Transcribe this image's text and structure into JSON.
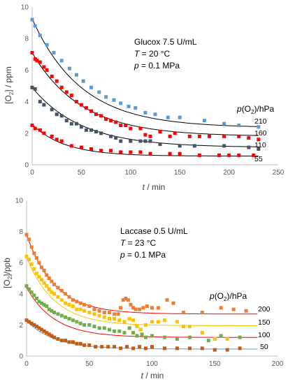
{
  "chart_data": [
    {
      "type": "scatter",
      "xlabel_var": "t",
      "xlabel_unit": " / min",
      "ylabel": "[O2] / ppm",
      "ylabel_pre": "[O",
      "ylabel_sub": "2",
      "ylabel_post": "] / ppm",
      "xlim": [
        0,
        250
      ],
      "ylim": [
        0,
        10
      ],
      "xticks": [
        0,
        50,
        100,
        150,
        200,
        250
      ],
      "yticks": [
        0,
        2,
        4,
        6,
        8,
        10
      ],
      "annotations": {
        "line1": "Glucox 7.5 U/mL",
        "line2_var": "T",
        "line2_rest": " = 20 °C",
        "line3_var": "p",
        "line3_rest": " = 0.1 MPa"
      },
      "legend_title_var": "p",
      "legend_title_pre": "(O",
      "legend_title_sub": "2",
      "legend_title_post": ")/hPa",
      "series": [
        {
          "name": "210",
          "color": "#5b9bd5",
          "fit_color": "#000000",
          "fit": {
            "a": 6.9,
            "k": 0.02,
            "c": 2.35
          },
          "x": [
            0,
            3,
            8,
            15,
            22,
            30,
            38,
            45,
            52,
            60,
            68,
            75,
            83,
            90,
            98,
            105,
            115,
            125,
            138,
            150,
            175,
            195,
            210,
            230
          ],
          "y": [
            9.2,
            8.8,
            8.2,
            7.6,
            7.1,
            6.6,
            6.1,
            5.7,
            5.3,
            4.9,
            4.6,
            4.3,
            4.1,
            3.9,
            3.7,
            3.6,
            3.3,
            3.2,
            3.0,
            3.0,
            2.8,
            2.6,
            2.5,
            2.4
          ]
        },
        {
          "name": "160",
          "color": "#ff0000",
          "fit_color": "#000000",
          "fit": {
            "a": 5.3,
            "k": 0.02,
            "c": 1.8
          },
          "x": [
            0,
            3,
            5,
            8,
            12,
            15,
            20,
            25,
            30,
            35,
            40,
            45,
            50,
            55,
            60,
            65,
            70,
            75,
            80,
            85,
            90,
            95,
            100,
            110,
            115,
            120,
            130,
            140,
            145,
            160,
            170,
            180,
            195,
            210,
            220,
            230
          ],
          "y": [
            7.1,
            6.7,
            6.6,
            6.5,
            6.2,
            6.0,
            5.6,
            5.3,
            4.9,
            4.6,
            4.4,
            4.0,
            3.8,
            3.6,
            3.4,
            3.2,
            3.1,
            2.9,
            2.8,
            2.7,
            2.5,
            2.5,
            2.3,
            2.3,
            1.9,
            1.8,
            2.1,
            1.8,
            2.0,
            1.8,
            1.8,
            1.8,
            1.8,
            1.8,
            1.7,
            1.6
          ]
        },
        {
          "name": "110",
          "color": "#44546a",
          "fit_color": "#000000",
          "fit": {
            "a": 3.8,
            "k": 0.02,
            "c": 1.1
          },
          "x": [
            0,
            3,
            8,
            12,
            20,
            25,
            30,
            35,
            40,
            45,
            50,
            55,
            60,
            65,
            70,
            80,
            85,
            90,
            100,
            110,
            115,
            120,
            130,
            150,
            165,
            195,
            220,
            230
          ],
          "y": [
            4.9,
            4.8,
            4.0,
            3.8,
            3.5,
            3.2,
            3.1,
            2.8,
            2.6,
            2.6,
            2.4,
            2.2,
            2.2,
            2.1,
            2.0,
            1.8,
            1.7,
            1.5,
            1.5,
            1.5,
            1.5,
            1.5,
            1.3,
            1.2,
            1.2,
            1.2,
            1.1,
            1.0
          ]
        },
        {
          "name": "55",
          "color": "#ff0000",
          "fit_color": "#000000",
          "fit": {
            "a": 2.0,
            "k": 0.03,
            "c": 0.55
          },
          "x": [
            0,
            3,
            8,
            12,
            20,
            25,
            30,
            40,
            50,
            60,
            70,
            80,
            90,
            100,
            110,
            120,
            140,
            150,
            170,
            190,
            200,
            210,
            225
          ],
          "y": [
            2.5,
            2.3,
            2.2,
            2.0,
            1.8,
            1.6,
            1.5,
            1.2,
            1.1,
            1.0,
            0.9,
            0.9,
            0.8,
            0.8,
            0.8,
            0.7,
            0.7,
            0.7,
            0.6,
            0.6,
            0.6,
            0.6,
            0.6
          ]
        }
      ]
    },
    {
      "type": "scatter",
      "xlabel_var": "t",
      "xlabel_unit": " / min",
      "ylabel": "[O2]/ppb",
      "ylabel_pre": "[O",
      "ylabel_sub": "2",
      "ylabel_post": "]/ppb",
      "xlim": [
        0,
        200
      ],
      "ylim": [
        0,
        10
      ],
      "xticks": [
        0,
        50,
        100,
        150,
        200
      ],
      "yticks": [
        0,
        2,
        4,
        6,
        8,
        10
      ],
      "annotations": {
        "line1": "Laccase 0.5 U/mL",
        "line2_var": "T",
        "line2_rest": " = 23 °C",
        "line3_var": "p",
        "line3_rest": " =  0.1 MPa"
      },
      "legend_title_var": "p",
      "legend_title_pre": "(O",
      "legend_title_sub": "2",
      "legend_title_post": ")/hPa",
      "series": [
        {
          "name": "200",
          "color": "#ed7d31",
          "fit_color": "#ff0000",
          "fit": {
            "a": 5.1,
            "k": 0.045,
            "c": 2.7
          },
          "x": [
            0,
            2,
            4,
            6,
            8,
            10,
            12,
            14,
            16,
            18,
            20,
            22,
            25,
            28,
            31,
            34,
            37,
            40,
            43,
            46,
            50,
            54,
            58,
            62,
            66,
            70,
            73,
            75,
            77,
            79,
            81,
            83,
            85,
            87,
            90,
            93,
            96,
            100,
            105,
            112,
            117,
            125,
            140,
            155,
            165,
            175
          ],
          "y": [
            7.8,
            7.5,
            7.0,
            6.6,
            6.3,
            6.0,
            5.7,
            5.5,
            5.2,
            5.0,
            4.8,
            4.6,
            4.4,
            4.2,
            4.0,
            3.8,
            3.6,
            3.5,
            3.4,
            3.3,
            3.2,
            3.0,
            2.9,
            2.8,
            2.8,
            2.7,
            2.7,
            3.1,
            3.6,
            3.7,
            3.6,
            3.3,
            3.1,
            3.0,
            3.0,
            3.1,
            3.2,
            3.1,
            3.1,
            3.6,
            3.4,
            2.8,
            2.8,
            3.1,
            3.0,
            2.9
          ]
        },
        {
          "name": "150",
          "color": "#ffc000",
          "fit_color": "#ffc000",
          "fit": {
            "a": 4.4,
            "k": 0.045,
            "c": 1.95
          },
          "x": [
            0,
            2,
            4,
            6,
            8,
            10,
            12,
            14,
            16,
            18,
            20,
            22,
            25,
            28,
            31,
            34,
            37,
            40,
            43,
            46,
            50,
            54,
            58,
            62,
            66,
            70,
            74,
            78,
            82,
            85,
            88,
            91,
            95,
            100,
            105,
            110,
            120,
            125,
            130,
            140,
            150,
            160
          ],
          "y": [
            6.4,
            6.2,
            5.9,
            5.6,
            5.3,
            5.1,
            4.9,
            4.7,
            4.5,
            4.3,
            4.1,
            4.0,
            3.8,
            3.6,
            3.4,
            3.3,
            3.2,
            3.0,
            3.0,
            2.9,
            2.8,
            2.7,
            2.6,
            2.5,
            2.4,
            2.4,
            2.3,
            2.2,
            2.4,
            2.3,
            1.9,
            1.7,
            2.0,
            2.2,
            2.2,
            2.3,
            2.2,
            1.9,
            1.9,
            1.5,
            1.1,
            1.1
          ]
        },
        {
          "name": "100",
          "color": "#70ad47",
          "fit_color": "#ff0000",
          "fit": {
            "a": 3.2,
            "k": 0.045,
            "c": 1.2
          },
          "x": [
            0,
            2,
            4,
            6,
            8,
            10,
            12,
            14,
            16,
            18,
            20,
            22,
            25,
            28,
            31,
            34,
            37,
            40,
            43,
            46,
            50,
            54,
            58,
            62,
            66,
            70,
            74,
            78,
            82,
            85,
            88,
            92,
            95,
            100,
            110,
            120,
            130,
            145,
            155,
            170
          ],
          "y": [
            4.5,
            4.3,
            4.1,
            3.9,
            3.7,
            3.5,
            3.4,
            3.3,
            3.2,
            3.0,
            2.9,
            2.8,
            2.7,
            2.6,
            2.5,
            2.4,
            2.3,
            2.2,
            2.1,
            2.0,
            2.0,
            1.9,
            1.8,
            1.8,
            1.7,
            1.6,
            1.6,
            1.5,
            1.8,
            1.5,
            1.3,
            1.4,
            1.2,
            1.3,
            1.2,
            1.1,
            1.2,
            1.0,
            1.3,
            1.2
          ]
        },
        {
          "name": "50",
          "color": "#c55a11",
          "fit_color": "#5b9bd5",
          "fit": {
            "a": 1.8,
            "k": 0.045,
            "c": 0.45
          },
          "x": [
            0,
            2,
            4,
            6,
            8,
            10,
            12,
            14,
            16,
            18,
            20,
            22,
            25,
            28,
            31,
            34,
            37,
            40,
            43,
            46,
            50,
            55,
            60,
            65,
            70,
            75,
            80,
            85,
            90,
            95,
            100,
            110,
            120,
            130,
            140,
            150,
            160,
            170
          ],
          "y": [
            2.3,
            2.2,
            2.1,
            2.0,
            1.9,
            1.8,
            1.7,
            1.6,
            1.5,
            1.4,
            1.3,
            1.2,
            1.1,
            1.0,
            1.0,
            0.9,
            0.9,
            0.8,
            0.8,
            0.7,
            0.7,
            0.6,
            0.6,
            0.6,
            0.6,
            0.5,
            0.6,
            0.5,
            0.6,
            0.5,
            0.6,
            0.5,
            0.5,
            0.5,
            0.5,
            0.4,
            0.4,
            0.5
          ]
        }
      ]
    }
  ]
}
